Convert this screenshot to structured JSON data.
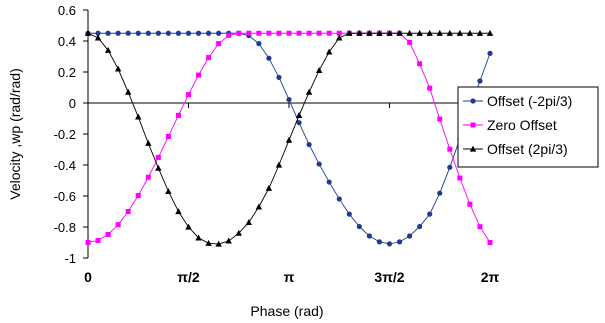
{
  "chart_data": {
    "type": "line",
    "xlabel": "Phase (rad)",
    "ylabel": "Velocity ,wp (rad/rad)",
    "xlim": [
      0,
      6.2832
    ],
    "ylim": [
      -1,
      0.6
    ],
    "x_ticks": [
      {
        "value": 0,
        "label": "0"
      },
      {
        "value": 1.5708,
        "label": "π/2"
      },
      {
        "value": 3.1416,
        "label": "π"
      },
      {
        "value": 4.7124,
        "label": "3π/2"
      },
      {
        "value": 6.2832,
        "label": "2π"
      }
    ],
    "y_ticks": [
      {
        "value": 0.6,
        "label": "0.6"
      },
      {
        "value": 0.4,
        "label": "0.4"
      },
      {
        "value": 0.2,
        "label": "0.2"
      },
      {
        "value": 0,
        "label": "0"
      },
      {
        "value": -0.2,
        "label": "-0.2"
      },
      {
        "value": -0.4,
        "label": "-0.4"
      },
      {
        "value": -0.6,
        "label": "-0.6"
      },
      {
        "value": -0.8,
        "label": "-0.8"
      },
      {
        "value": -1,
        "label": "-1"
      }
    ],
    "grid": false,
    "legend_position": "right",
    "series": [
      {
        "name": "Offset (-2pi/3)",
        "color": "#1f3a93",
        "marker": "circle",
        "x": [
          0,
          0.1571,
          0.3142,
          0.4712,
          0.6283,
          0.7854,
          0.9425,
          1.0996,
          1.2566,
          1.4137,
          1.5708,
          1.7279,
          1.885,
          2.042,
          2.1991,
          2.3562,
          2.5133,
          2.6704,
          2.8274,
          2.9845,
          3.1416,
          3.2987,
          3.4558,
          3.6128,
          3.7699,
          3.927,
          4.0841,
          4.2412,
          4.3982,
          4.5553,
          4.7124,
          4.8695,
          5.0265,
          5.1836,
          5.3407,
          5.4978,
          5.6549,
          5.8119,
          5.969,
          6.1261,
          6.2832
        ],
        "y": [
          0.45,
          0.45,
          0.45,
          0.45,
          0.45,
          0.45,
          0.45,
          0.45,
          0.45,
          0.45,
          0.45,
          0.45,
          0.45,
          0.45,
          0.45,
          0.45,
          0.435,
          0.383,
          0.289,
          0.165,
          0.022,
          -0.127,
          -0.268,
          -0.394,
          -0.51,
          -0.619,
          -0.717,
          -0.797,
          -0.858,
          -0.896,
          -0.909,
          -0.896,
          -0.858,
          -0.797,
          -0.717,
          -0.582,
          -0.415,
          -0.232,
          -0.044,
          0.142,
          0.32
        ],
        "y_display_note": ""
      },
      {
        "name": "Zero Offset",
        "color": "#ff00ff",
        "marker": "square",
        "x": [
          0,
          0.1571,
          0.3142,
          0.4712,
          0.6283,
          0.7854,
          0.9425,
          1.0996,
          1.2566,
          1.4137,
          1.5708,
          1.7279,
          1.885,
          2.042,
          2.1991,
          2.3562,
          2.5133,
          2.6704,
          2.8274,
          2.9845,
          3.1416,
          3.2987,
          3.4558,
          3.6128,
          3.7699,
          3.927,
          4.0841,
          4.2412,
          4.3982,
          4.5553,
          4.7124,
          4.8695,
          5.0265,
          5.1836,
          5.3407,
          5.4978,
          5.6549,
          5.8119,
          5.969,
          6.1261,
          6.2832
        ],
        "y": [
          -0.9,
          -0.887,
          -0.848,
          -0.785,
          -0.7,
          -0.597,
          -0.479,
          -0.351,
          -0.216,
          -0.08,
          0.054,
          0.18,
          0.293,
          0.383,
          0.436,
          0.45,
          0.45,
          0.45,
          0.45,
          0.45,
          0.45,
          0.45,
          0.45,
          0.45,
          0.45,
          0.45,
          0.45,
          0.45,
          0.45,
          0.45,
          0.45,
          0.45,
          0.391,
          0.253,
          0.096,
          -0.104,
          -0.298,
          -0.484,
          -0.653,
          -0.798,
          -0.9
        ]
      },
      {
        "name": "Offset (2pi/3)",
        "color": "#000000",
        "marker": "triangle",
        "x": [
          0,
          0.1571,
          0.3142,
          0.4712,
          0.6283,
          0.7854,
          0.9425,
          1.0996,
          1.2566,
          1.4137,
          1.5708,
          1.7279,
          1.885,
          2.042,
          2.1991,
          2.3562,
          2.5133,
          2.6704,
          2.8274,
          2.9845,
          3.1416,
          3.2987,
          3.4558,
          3.6128,
          3.7699,
          3.927,
          4.0841,
          4.2412,
          4.3982,
          4.5553,
          4.7124,
          4.8695,
          5.0265,
          5.1836,
          5.3407,
          5.4978,
          5.6549,
          5.8119,
          5.969,
          6.1261,
          6.2832
        ],
        "y": [
          0.45,
          0.42,
          0.34,
          0.22,
          0.07,
          -0.09,
          -0.26,
          -0.42,
          -0.57,
          -0.7,
          -0.8,
          -0.87,
          -0.905,
          -0.91,
          -0.89,
          -0.84,
          -0.77,
          -0.67,
          -0.55,
          -0.4,
          -0.24,
          -0.08,
          0.07,
          0.21,
          0.33,
          0.42,
          0.45,
          0.45,
          0.45,
          0.45,
          0.45,
          0.45,
          0.45,
          0.45,
          0.45,
          0.45,
          0.45,
          0.45,
          0.45,
          0.45,
          0.45
        ]
      }
    ]
  }
}
